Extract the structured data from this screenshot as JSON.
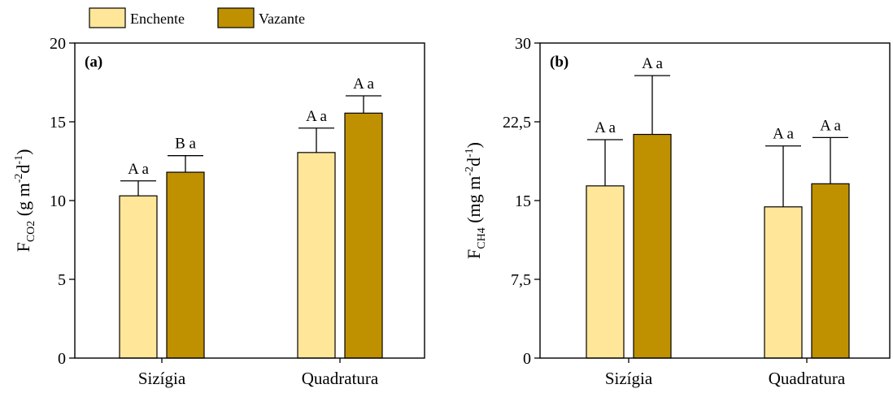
{
  "legend": {
    "items": [
      {
        "label": "Enchente",
        "color": "#FFE699"
      },
      {
        "label": "Vazante",
        "color": "#BF9000"
      }
    ],
    "placement": "top-left"
  },
  "chart_data": [
    {
      "type": "bar",
      "panel_label": "(a)",
      "categories": [
        "Sizígia",
        "Quadratura"
      ],
      "series": [
        {
          "name": "Enchente",
          "color": "#FFE699",
          "values": [
            10.3,
            13.05
          ],
          "error_upper": [
            11.25,
            14.6
          ],
          "labels": [
            "A a",
            "A a"
          ]
        },
        {
          "name": "Vazante",
          "color": "#BF9000",
          "values": [
            11.8,
            15.55
          ],
          "error_upper": [
            12.85,
            16.65
          ],
          "labels": [
            "B a",
            "A a"
          ]
        }
      ],
      "ylim": [
        0,
        20
      ],
      "yticks": [
        0,
        5,
        10,
        15,
        20
      ],
      "ytick_labels": [
        "0",
        "5",
        "10",
        "15",
        "20"
      ],
      "ylabel": {
        "base": "F",
        "sub": "CO2",
        "unit_open": " (g m",
        "sup1": "-2",
        "mid": "d",
        "sup2": "-1",
        "close": ")"
      },
      "grid": false
    },
    {
      "type": "bar",
      "panel_label": "(b)",
      "categories": [
        "Sizígia",
        "Quadratura"
      ],
      "series": [
        {
          "name": "Enchente",
          "color": "#FFE699",
          "values": [
            16.4,
            14.4
          ],
          "error_upper": [
            20.8,
            20.2
          ],
          "labels": [
            "A a",
            "A a"
          ]
        },
        {
          "name": "Vazante",
          "color": "#BF9000",
          "values": [
            21.3,
            16.6
          ],
          "error_upper": [
            26.9,
            21.0
          ],
          "labels": [
            "A a",
            "A a"
          ]
        }
      ],
      "ylim": [
        0,
        30
      ],
      "yticks": [
        0,
        7.5,
        15,
        22.5,
        30
      ],
      "ytick_labels": [
        "0",
        "7,5",
        "15",
        "22,5",
        "30"
      ],
      "ylabel": {
        "base": "F",
        "sub": "CH4",
        "unit_open": " (mg m",
        "sup1": "-2",
        "mid": "d",
        "sup2": "-1",
        "close": ")"
      },
      "grid": false
    }
  ]
}
